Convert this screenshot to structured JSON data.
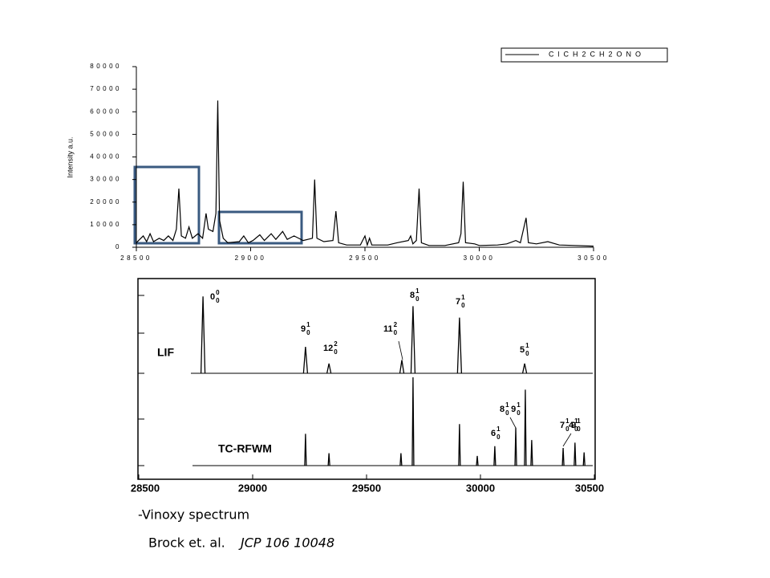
{
  "chart_data": [
    {
      "type": "line",
      "y_label": "Intensity a.u.",
      "color": "#000000",
      "series_name": "ClCH2CH2ONO",
      "xlim": [
        28500,
        30500
      ],
      "xticks": [
        28500,
        29000,
        29500,
        30000,
        30500
      ],
      "ylim": [
        0,
        80000
      ],
      "yticks": [
        0,
        10000,
        20000,
        30000,
        40000,
        50000,
        60000,
        70000,
        80000
      ],
      "x": [
        28500,
        28510,
        28530,
        28545,
        28560,
        28575,
        28600,
        28620,
        28640,
        28660,
        28675,
        28686,
        28697,
        28715,
        28730,
        28745,
        28770,
        28790,
        28805,
        28815,
        28835,
        28848,
        28856,
        28864,
        28880,
        28900,
        28950,
        28970,
        28990,
        29010,
        29040,
        29060,
        29090,
        29110,
        29140,
        29160,
        29190,
        29230,
        29270,
        29280,
        29290,
        29320,
        29360,
        29373,
        29385,
        29420,
        29480,
        29500,
        29510,
        29520,
        29530,
        29600,
        29640,
        29690,
        29700,
        29710,
        29725,
        29737,
        29747,
        29780,
        29850,
        29910,
        29920,
        29930,
        29940,
        29980,
        30000,
        30080,
        30120,
        30160,
        30180,
        30205,
        30215,
        30250,
        30300,
        30350,
        30420,
        30500
      ],
      "values": [
        2000,
        3000,
        5000,
        2500,
        6000,
        2500,
        4000,
        3000,
        5000,
        3000,
        8000,
        26000,
        5000,
        4000,
        9000,
        4000,
        6000,
        4000,
        15000,
        8000,
        7000,
        15000,
        65000,
        12000,
        4000,
        2000,
        2500,
        5000,
        2000,
        3000,
        5500,
        3000,
        6000,
        3500,
        7000,
        3500,
        5000,
        3000,
        4000,
        30000,
        4000,
        2500,
        3000,
        16000,
        2000,
        1000,
        1000,
        5000,
        1000,
        4000,
        1000,
        1000,
        2000,
        3000,
        5000,
        1500,
        3000,
        26000,
        2000,
        800,
        800,
        2000,
        6000,
        29000,
        2000,
        1500,
        800,
        1000,
        1500,
        3000,
        2000,
        13000,
        2000,
        1500,
        2500,
        1000,
        800,
        500
      ]
    },
    {
      "type": "stick",
      "color": "#000000",
      "xlim": [
        28500,
        30500
      ],
      "xticks": [
        28500,
        29000,
        29500,
        30000,
        30500
      ],
      "ylim": [
        0,
        100
      ],
      "series": [
        {
          "name": "LIF",
          "x": [
            28782,
            29232,
            29335,
            29655,
            29704,
            29908,
            30194
          ],
          "values": [
            87,
            30,
            11,
            15,
            76,
            63,
            11
          ],
          "peak_labels": [
            [
              [
                "0",
                "0",
                "0"
              ]
            ],
            [
              [
                "9",
                "1",
                "0"
              ]
            ],
            [
              [
                "12",
                "2",
                "0"
              ]
            ],
            [
              [
                "11",
                "2",
                "0"
              ]
            ],
            [
              [
                "8",
                "1",
                "0"
              ]
            ],
            [
              [
                "7",
                "1",
                "0"
              ]
            ],
            [
              [
                "5",
                "1",
                "0"
              ]
            ]
          ]
        },
        {
          "name": "TC-RFWM",
          "x": [
            29232,
            29335,
            29651,
            29704,
            29908,
            29986,
            30063,
            30155,
            30197,
            30225,
            30363,
            30415,
            30455
          ],
          "values": [
            36,
            14,
            14,
            100,
            47,
            11,
            22,
            43,
            86,
            29,
            20,
            26,
            15
          ],
          "peak_labels": [
            [
              [
                "6",
                "1",
                "0"
              ]
            ],
            [
              [
                "8",
                "1",
                "0"
              ],
              [
                "9",
                "1",
                "0"
              ]
            ],
            [
              [
                "7",
                "1",
                "0"
              ],
              [
                "9",
                "1",
                "0"
              ]
            ],
            [
              [
                "4",
                "1",
                "0"
              ]
            ]
          ]
        }
      ]
    }
  ],
  "caption": {
    "title": "-Vinoxy spectrum",
    "authors": "Brock et. al.",
    "citation": "JCP 106 10048"
  }
}
